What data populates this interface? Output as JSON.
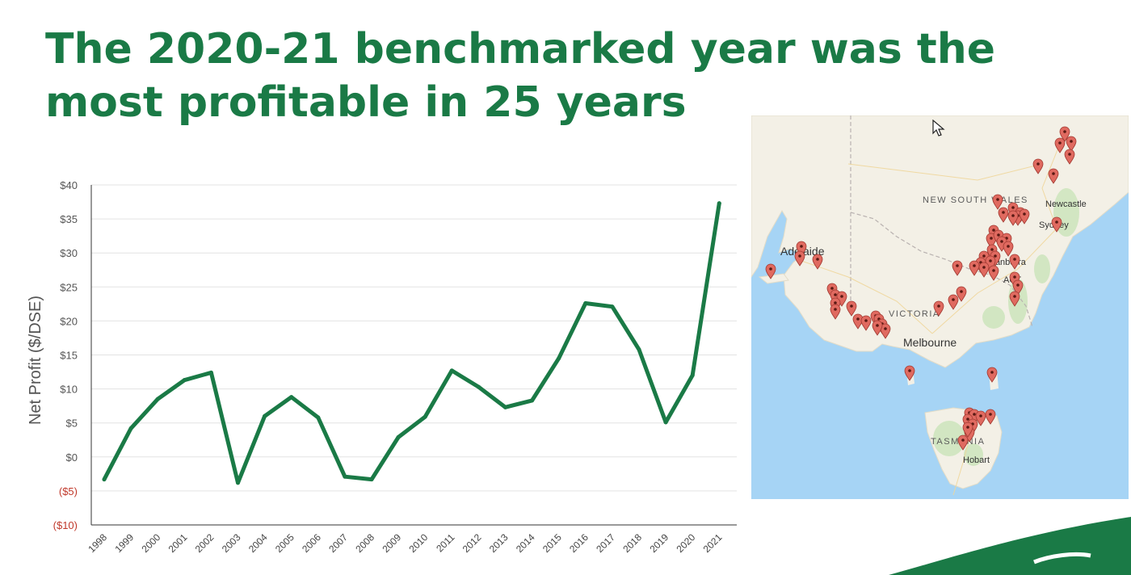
{
  "slide": {
    "title": "The 2020-21 benchmarked year was the most profitable in 25 years"
  },
  "chart_data": {
    "type": "line",
    "title": "",
    "xlabel": "",
    "ylabel": "Net Profit ($/DSE)",
    "categories": [
      "1998",
      "1999",
      "2000",
      "2001",
      "2002",
      "2003",
      "2004",
      "2005",
      "2006",
      "2007",
      "2008",
      "2009",
      "2010",
      "2011",
      "2012",
      "2013",
      "2014",
      "2015",
      "2016",
      "2017",
      "2018",
      "2019",
      "2020",
      "2021"
    ],
    "series": [
      {
        "values": [
          -3.3,
          4.2,
          8.5,
          11.3,
          12.4,
          -3.8,
          6.0,
          8.8,
          5.8,
          -2.9,
          -3.3,
          2.9,
          5.9,
          12.7,
          10.3,
          7.3,
          8.3,
          14.5,
          22.6,
          22.1,
          15.8,
          5.1,
          12.0,
          37.3
        ]
      }
    ],
    "ylim": [
      -10,
      40
    ],
    "yticks": [
      {
        "value": 40,
        "label": "$40"
      },
      {
        "value": 35,
        "label": "$35"
      },
      {
        "value": 30,
        "label": "$30"
      },
      {
        "value": 25,
        "label": "$25"
      },
      {
        "value": 20,
        "label": "$20"
      },
      {
        "value": 15,
        "label": "$15"
      },
      {
        "value": 10,
        "label": "$10"
      },
      {
        "value": 5,
        "label": "$5"
      },
      {
        "value": 0,
        "label": "$0"
      },
      {
        "value": -5,
        "label": "($5)"
      },
      {
        "value": -10,
        "label": "($10)"
      }
    ],
    "grid": true,
    "colors": {
      "line": "#1a7a46",
      "negative_tick": "#c0392b",
      "tick": "#555555",
      "grid": "#e3e3e3"
    }
  },
  "map": {
    "state_labels": [
      "NEW SOUTH WALES",
      "VICTORIA",
      "TASMANIA"
    ],
    "city_labels": [
      "Newcastle",
      "Sydney",
      "Adelaide",
      "Canberra",
      "ACT",
      "Melbourne",
      "Hobart"
    ],
    "marker_count": 64,
    "marker_icon": "map-pin-icon",
    "colors": {
      "water": "#a6d4f5",
      "land": "#f3f0e6",
      "marker": "#e06a60"
    }
  }
}
